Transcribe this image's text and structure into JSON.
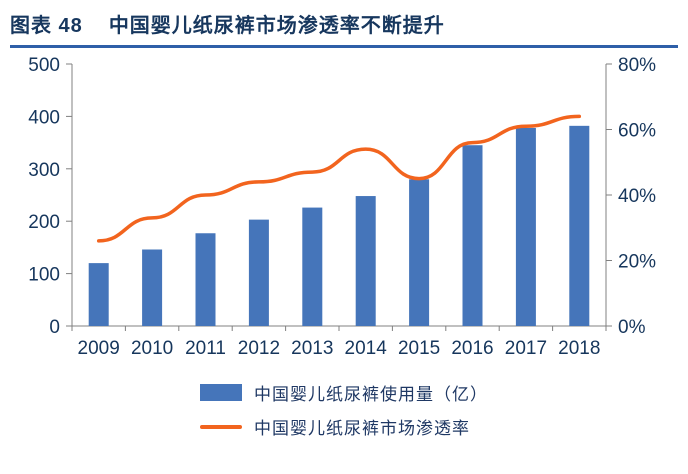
{
  "header": {
    "label": "图表  48",
    "title": "中国婴儿纸尿裤市场渗透率不断提升"
  },
  "colors": {
    "title_text": "#17375E",
    "header_rule": "#2E5FA8",
    "axis_text": "#16365C",
    "axis_line": "#808080",
    "bar": "#4575BA",
    "line": "#F2641E"
  },
  "chart_data": {
    "type": "bar",
    "subtype": "combo-bar-line",
    "title": "中国婴儿纸尿裤市场渗透率不断提升",
    "categories": [
      "2009",
      "2010",
      "2011",
      "2012",
      "2013",
      "2014",
      "2015",
      "2016",
      "2017",
      "2018"
    ],
    "series": [
      {
        "name": "中国婴儿纸尿裤使用量（亿）",
        "type": "bar",
        "axis": "left",
        "color": "#4575BA",
        "values": [
          120,
          146,
          177,
          203,
          226,
          248,
          280,
          345,
          378,
          382
        ]
      },
      {
        "name": "中国婴儿纸尿裤市场渗透率",
        "type": "line",
        "axis": "right",
        "color": "#F2641E",
        "values": [
          26,
          33,
          40,
          44,
          47,
          54,
          45,
          56,
          61,
          64
        ]
      }
    ],
    "left_axis": {
      "min": 0,
      "max": 500,
      "ticks": [
        0,
        100,
        200,
        300,
        400,
        500
      ]
    },
    "right_axis": {
      "min": 0,
      "max": 80,
      "tick_values": [
        0,
        20,
        40,
        60,
        80
      ],
      "ticks": [
        "0%",
        "20%",
        "40%",
        "60%",
        "80%"
      ]
    },
    "xlabel": "",
    "ylabel": "",
    "grid": false,
    "legend_position": "bottom"
  }
}
